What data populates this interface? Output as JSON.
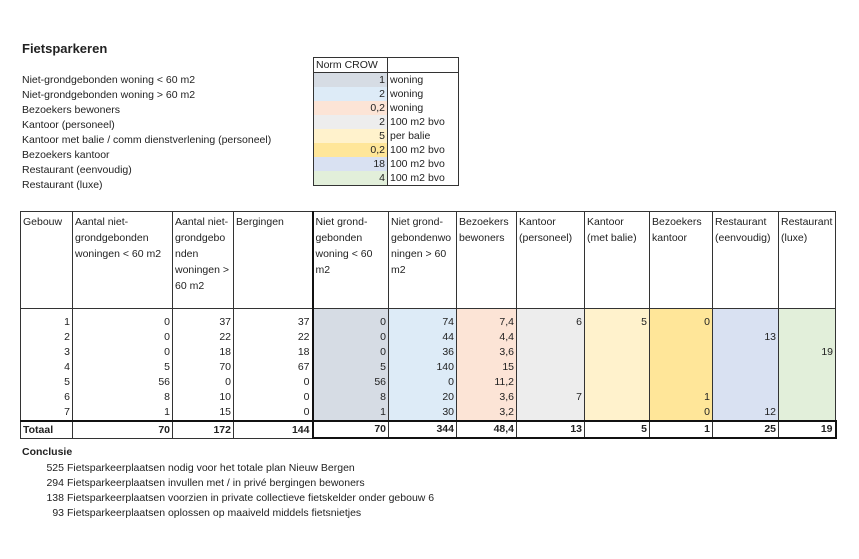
{
  "title": "Fietsparkeren",
  "norm": {
    "header": "Norm CROW",
    "items": [
      {
        "label": "Niet-grondgebonden woning < 60 m2",
        "value": "1",
        "unit": "woning",
        "color": "#d6dce4"
      },
      {
        "label": "Niet-grondgebonden woning > 60 m2",
        "value": "2",
        "unit": "woning",
        "color": "#ddebf7"
      },
      {
        "label": "Bezoekers bewoners",
        "value": "0,2",
        "unit": "woning",
        "color": "#fce4d6"
      },
      {
        "label": "Kantoor (personeel)",
        "value": "2",
        "unit": "100 m2 bvo",
        "color": "#ededed"
      },
      {
        "label": "Kantoor met balie / comm dienstverlening (personeel)",
        "value": "5",
        "unit": "per balie",
        "color": "#fff2cc"
      },
      {
        "label": "Bezoekers kantoor",
        "value": "0,2",
        "unit": "100 m2 bvo",
        "color": "#ffe699"
      },
      {
        "label": "Restaurant (eenvoudig)",
        "value": "18",
        "unit": "100 m2 bvo",
        "color": "#d9e1f2"
      },
      {
        "label": "Restaurant (luxe)",
        "value": "4",
        "unit": "100 m2 bvo",
        "color": "#e2efda"
      }
    ]
  },
  "main": {
    "headers": [
      "Gebouw",
      "Aantal niet-grondgebonden woningen < 60 m2",
      "Aantal niet-grondgebo nden woningen > 60 m2",
      "Bergingen",
      "Niet grond-gebonden woning < 60 m2",
      "Niet grond-gebondenwo ningen > 60 m2",
      "Bezoekers bewoners",
      "Kantoor (personeel)",
      "Kantoor (met balie)",
      "Bezoekers kantoor",
      "Restaurant (eenvoudig)",
      "Restaurant (luxe)"
    ],
    "column_colors": [
      "#fff",
      "#fff",
      "#fff",
      "#fff",
      "#d6dce4",
      "#ddebf7",
      "#fce4d6",
      "#ededed",
      "#fff2cc",
      "#ffe699",
      "#d9e1f2",
      "#e2efda"
    ],
    "rows": [
      [
        "1",
        "0",
        "37",
        "37",
        "0",
        "74",
        "7,4",
        "6",
        "5",
        "0",
        "",
        ""
      ],
      [
        "2",
        "0",
        "22",
        "22",
        "0",
        "44",
        "4,4",
        "",
        "",
        "",
        "13",
        ""
      ],
      [
        "3",
        "0",
        "18",
        "18",
        "0",
        "36",
        "3,6",
        "",
        "",
        "",
        "",
        "19"
      ],
      [
        "4",
        "5",
        "70",
        "67",
        "5",
        "140",
        "15",
        "",
        "",
        "",
        "",
        ""
      ],
      [
        "5",
        "56",
        "0",
        "0",
        "56",
        "0",
        "11,2",
        "",
        "",
        "",
        "",
        ""
      ],
      [
        "6",
        "8",
        "10",
        "0",
        "8",
        "20",
        "3,6",
        "7",
        "",
        "1",
        "",
        ""
      ],
      [
        "7",
        "1",
        "15",
        "0",
        "1",
        "30",
        "3,2",
        "",
        "",
        "0",
        "12",
        ""
      ]
    ],
    "total": [
      "Totaal",
      "70",
      "172",
      "144",
      "70",
      "344",
      "48,4",
      "13",
      "5",
      "1",
      "25",
      "19"
    ]
  },
  "conclusion": {
    "heading": "Conclusie",
    "lines": [
      {
        "value": "525",
        "text": "Fietsparkeerplaatsen nodig voor het totale plan Nieuw Bergen"
      },
      {
        "value": "294",
        "text": "Fietsparkeerplaatsen invullen met / in privé bergingen bewoners"
      },
      {
        "value": "138",
        "text": "Fietsparkeerplaatsen voorzien in private collectieve fietskelder onder gebouw 6"
      },
      {
        "value": "93",
        "text": "Fietsparkeerplaatsen oplossen op maaiveld middels fietsnietjes"
      }
    ]
  }
}
